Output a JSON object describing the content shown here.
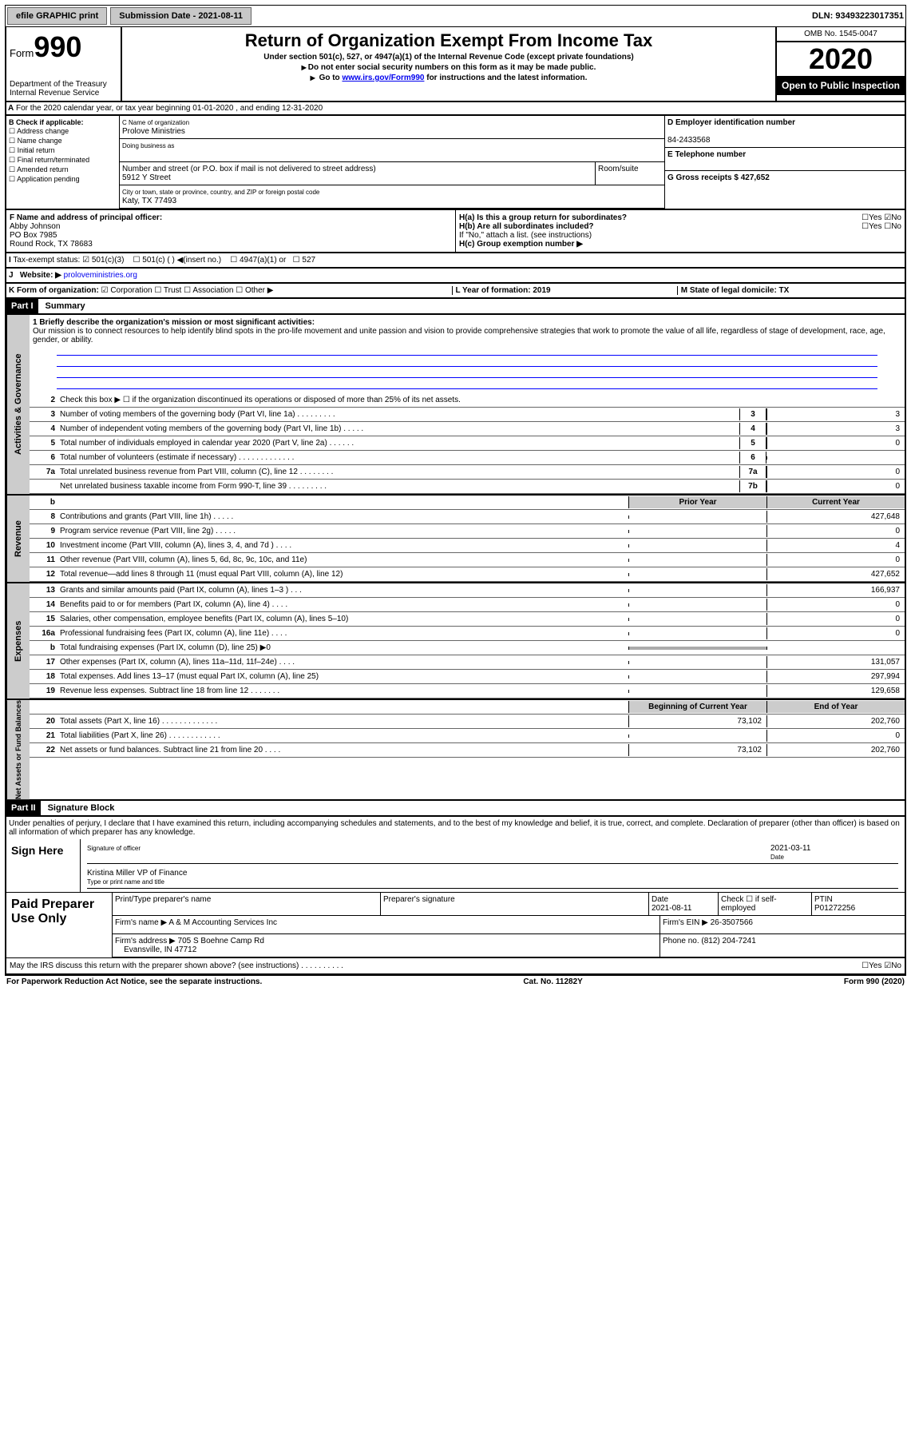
{
  "topbar": {
    "efile": "efile GRAPHIC print",
    "sub_label": "Submission Date - 2021-08-11",
    "dln_label": "DLN: 93493223017351"
  },
  "header": {
    "form_word": "Form",
    "form_num": "990",
    "dept": "Department of the Treasury",
    "irs": "Internal Revenue Service",
    "title": "Return of Organization Exempt From Income Tax",
    "sub1": "Under section 501(c), 527, or 4947(a)(1) of the Internal Revenue Code (except private foundations)",
    "sub2": "Do not enter social security numbers on this form as it may be made public.",
    "sub3_pre": "Go to",
    "sub3_link": "www.irs.gov/Form990",
    "sub3_post": "for instructions and the latest information.",
    "omb": "OMB No. 1545-0047",
    "year": "2020",
    "inspect": "Open to Public Inspection"
  },
  "taxyear": "For the 2020 calendar year, or tax year beginning 01-01-2020    , and ending 12-31-2020",
  "sec_b": {
    "title": "B Check if applicable:",
    "opts": [
      "Address change",
      "Name change",
      "Initial return",
      "Final return/terminated",
      "Amended return",
      "Application pending"
    ],
    "c_name_lbl": "C Name of organization",
    "c_name": "Prolove Ministries",
    "dba_lbl": "Doing business as",
    "addr_lbl": "Number and street (or P.O. box if mail is not delivered to street address)",
    "addr": "5912 Y Street",
    "room_lbl": "Room/suite",
    "city_lbl": "City or town, state or province, country, and ZIP or foreign postal code",
    "city": "Katy, TX  77493",
    "d_lbl": "D Employer identification number",
    "d_val": "84-2433568",
    "e_lbl": "E Telephone number",
    "g_lbl": "G Gross receipts $ 427,652",
    "f_lbl": "F  Name and address of principal officer:",
    "f_name": "Abby Johnson",
    "f_addr1": "PO Box 7985",
    "f_addr2": "Round Rock, TX  78683",
    "ha": "H(a)  Is this a group return for subordinates?",
    "hb": "H(b)  Are all subordinates included?",
    "hb_note": "If \"No,\" attach a list. (see instructions)",
    "hc": "H(c)  Group exemption number ▶",
    "exempt_lbl": "Tax-exempt status:",
    "ex501c3": "501(c)(3)",
    "ex501c": "501(c) (  ) ◀(insert no.)",
    "ex4947": "4947(a)(1) or",
    "ex527": "527",
    "website_lbl": "Website: ▶",
    "website": "proloveministries.org"
  },
  "row_k": {
    "k": "K Form of organization:",
    "opts": [
      "Corporation",
      "Trust",
      "Association",
      "Other ▶"
    ],
    "l": "L Year of formation: 2019",
    "m": "M State of legal domicile: TX"
  },
  "part1": {
    "hdr": "Part I",
    "title": "Summary",
    "q1": "1  Briefly describe the organization's mission or most significant activities:",
    "mission": "Our mission is to connect resources to help identify blind spots in the pro-life movement and unite passion and vision to provide comprehensive strategies that work to promote the value of all life, regardless of stage of development, race, age, gender, or ability.",
    "rows": [
      {
        "n": "2",
        "t": "Check this box ▶ ☐  if the organization discontinued its operations or disposed of more than 25% of its net assets.",
        "nc": "",
        "v": ""
      },
      {
        "n": "3",
        "t": "Number of voting members of the governing body (Part VI, line 1a)  .  .  .  .  .  .  .  .  .",
        "nc": "3",
        "v": "3"
      },
      {
        "n": "4",
        "t": "Number of independent voting members of the governing body (Part VI, line 1b)  .  .  .  .  .",
        "nc": "4",
        "v": "3"
      },
      {
        "n": "5",
        "t": "Total number of individuals employed in calendar year 2020 (Part V, line 2a)  .  .  .  .  .  .",
        "nc": "5",
        "v": "0"
      },
      {
        "n": "6",
        "t": "Total number of volunteers (estimate if necessary)  .  .  .  .  .  .  .  .  .  .  .  .  .",
        "nc": "6",
        "v": ""
      },
      {
        "n": "7a",
        "t": "Total unrelated business revenue from Part VIII, column (C), line 12  .  .  .  .  .  .  .  .",
        "nc": "7a",
        "v": "0"
      },
      {
        "n": "",
        "t": "Net unrelated business taxable income from Form 990-T, line 39  .  .  .  .  .  .  .  .  .",
        "nc": "7b",
        "v": "0"
      }
    ],
    "col_prior": "Prior Year",
    "col_curr": "Current Year",
    "revenue": [
      {
        "n": "8",
        "t": "Contributions and grants (Part VIII, line 1h)  .  .  .  .  .",
        "p": "",
        "c": "427,648"
      },
      {
        "n": "9",
        "t": "Program service revenue (Part VIII, line 2g)  .  .  .  .  .",
        "p": "",
        "c": "0"
      },
      {
        "n": "10",
        "t": "Investment income (Part VIII, column (A), lines 3, 4, and 7d )  .  .  .  .",
        "p": "",
        "c": "4"
      },
      {
        "n": "11",
        "t": "Other revenue (Part VIII, column (A), lines 5, 6d, 8c, 9c, 10c, and 11e)",
        "p": "",
        "c": "0"
      },
      {
        "n": "12",
        "t": "Total revenue—add lines 8 through 11 (must equal Part VIII, column (A), line 12)",
        "p": "",
        "c": "427,652"
      }
    ],
    "expenses": [
      {
        "n": "13",
        "t": "Grants and similar amounts paid (Part IX, column (A), lines 1–3 )  .  .  .",
        "p": "",
        "c": "166,937"
      },
      {
        "n": "14",
        "t": "Benefits paid to or for members (Part IX, column (A), line 4)  .  .  .  .",
        "p": "",
        "c": "0"
      },
      {
        "n": "15",
        "t": "Salaries, other compensation, employee benefits (Part IX, column (A), lines 5–10)",
        "p": "",
        "c": "0"
      },
      {
        "n": "16a",
        "t": "Professional fundraising fees (Part IX, column (A), line 11e)  .  .  .  .",
        "p": "",
        "c": "0"
      },
      {
        "n": "b",
        "t": "Total fundraising expenses (Part IX, column (D), line 25) ▶0",
        "p": "grey",
        "c": ""
      },
      {
        "n": "17",
        "t": "Other expenses (Part IX, column (A), lines 11a–11d, 11f–24e)  .  .  .  .",
        "p": "",
        "c": "131,057"
      },
      {
        "n": "18",
        "t": "Total expenses. Add lines 13–17 (must equal Part IX, column (A), line 25)",
        "p": "",
        "c": "297,994"
      },
      {
        "n": "19",
        "t": "Revenue less expenses. Subtract line 18 from line 12  .  .  .  .  .  .  .",
        "p": "",
        "c": "129,658"
      }
    ],
    "na_col1": "Beginning of Current Year",
    "na_col2": "End of Year",
    "netassets": [
      {
        "n": "20",
        "t": "Total assets (Part X, line 16)  .  .  .  .  .  .  .  .  .  .  .  .  .",
        "p": "73,102",
        "c": "202,760"
      },
      {
        "n": "21",
        "t": "Total liabilities (Part X, line 26)  .  .  .  .  .  .  .  .  .  .  .  .",
        "p": "",
        "c": "0"
      },
      {
        "n": "22",
        "t": "Net assets or fund balances. Subtract line 21 from line 20  .  .  .  .",
        "p": "73,102",
        "c": "202,760"
      }
    ]
  },
  "part2": {
    "hdr": "Part II",
    "title": "Signature Block",
    "decl": "Under penalties of perjury, I declare that I have examined this return, including accompanying schedules and statements, and to the best of my knowledge and belief, it is true, correct, and complete. Declaration of preparer (other than officer) is based on all information of which preparer has any knowledge."
  },
  "sign": {
    "here": "Sign Here",
    "sig_officer": "Signature of officer",
    "date": "2021-03-11",
    "date_lbl": "Date",
    "name": "Kristina Miller VP of Finance",
    "name_lbl": "Type or print name and title"
  },
  "preparer": {
    "title": "Paid Preparer Use Only",
    "h_name": "Print/Type preparer's name",
    "h_sig": "Preparer's signature",
    "h_date": "Date",
    "date": "2021-08-11",
    "h_check": "Check ☐  if self-employed",
    "h_ptin": "PTIN",
    "ptin": "P01272256",
    "firm_lbl": "Firm's name    ▶",
    "firm": "A & M Accounting Services Inc",
    "ein_lbl": "Firm's EIN ▶",
    "ein": "26-3507566",
    "addr_lbl": "Firm's address ▶",
    "addr1": "705 S Boehne Camp Rd",
    "addr2": "Evansville, IN  47712",
    "phone_lbl": "Phone no.",
    "phone": "(812) 204-7241",
    "discuss": "May the IRS discuss this return with the preparer shown above? (see instructions)  .  .  .  .  .  .  .  .  .  ."
  },
  "footer": {
    "left": "For Paperwork Reduction Act Notice, see the separate instructions.",
    "mid": "Cat. No. 11282Y",
    "right": "Form 990 (2020)"
  },
  "side_labels": {
    "ag": "Activities & Governance",
    "rev": "Revenue",
    "exp": "Expenses",
    "na": "Net Assets or Fund Balances"
  },
  "yn": {
    "yes": "Yes",
    "no": "No"
  },
  "colors": {
    "hdr_bg": "#000",
    "hdr_fg": "#fff",
    "link": "#0000ee",
    "grey": "#cccccc"
  }
}
